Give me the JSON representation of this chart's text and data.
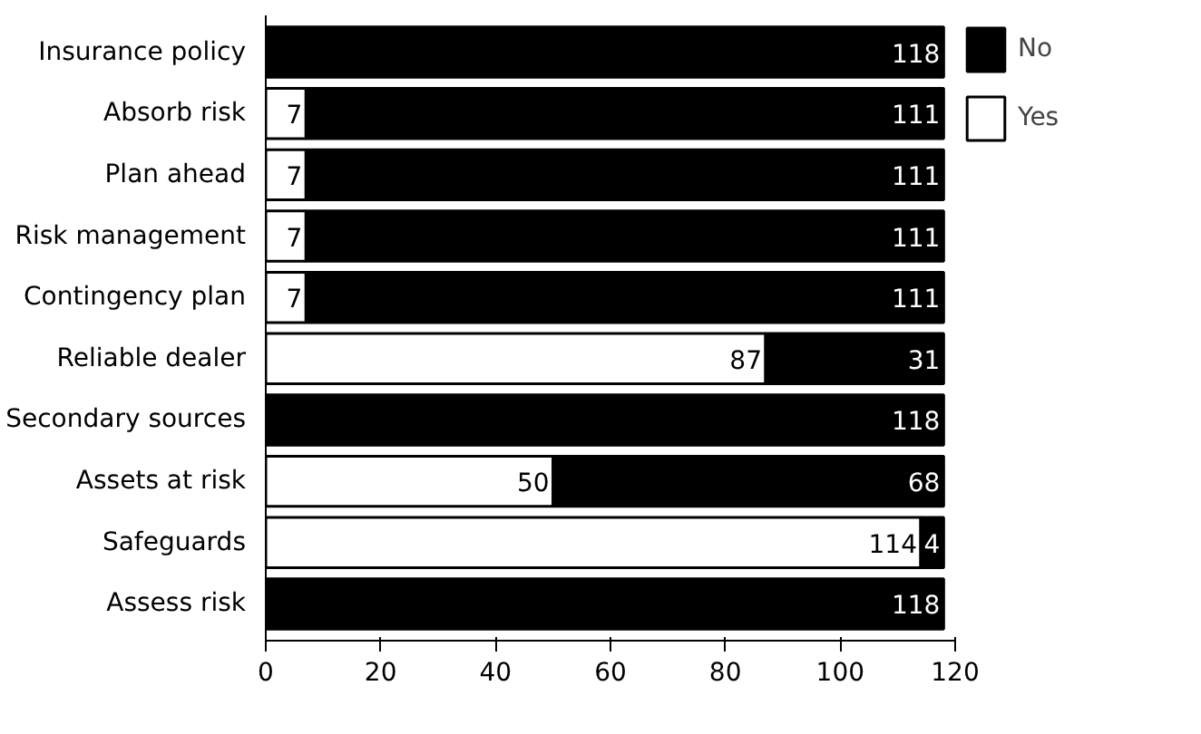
{
  "chart_data": {
    "type": "bar",
    "orientation": "horizontal",
    "stacked": true,
    "categories": [
      "Insurance policy",
      "Absorb risk",
      "Plan ahead",
      "Risk management",
      "Contingency plan",
      "Reliable dealer",
      "Secondary sources",
      "Assets at risk",
      "Safeguards",
      "Assess risk"
    ],
    "series": [
      {
        "name": "Yes",
        "color": "#ffffff",
        "values": [
          0,
          7,
          7,
          7,
          7,
          87,
          0,
          50,
          114,
          0
        ],
        "value_labels": [
          null,
          "7",
          "7",
          "7",
          "7",
          "87",
          null,
          "50",
          "114",
          null
        ]
      },
      {
        "name": "No",
        "color": "#000000",
        "values": [
          118,
          111,
          111,
          111,
          111,
          31,
          118,
          68,
          4,
          118
        ],
        "value_labels": [
          "118",
          "111",
          "111",
          "111",
          "111",
          "31",
          "118",
          "68",
          "4",
          "118"
        ]
      }
    ],
    "xlim": [
      0,
      120
    ],
    "xticks": [
      0,
      20,
      40,
      60,
      80,
      100,
      120
    ],
    "grid": false,
    "legend": "top right"
  }
}
